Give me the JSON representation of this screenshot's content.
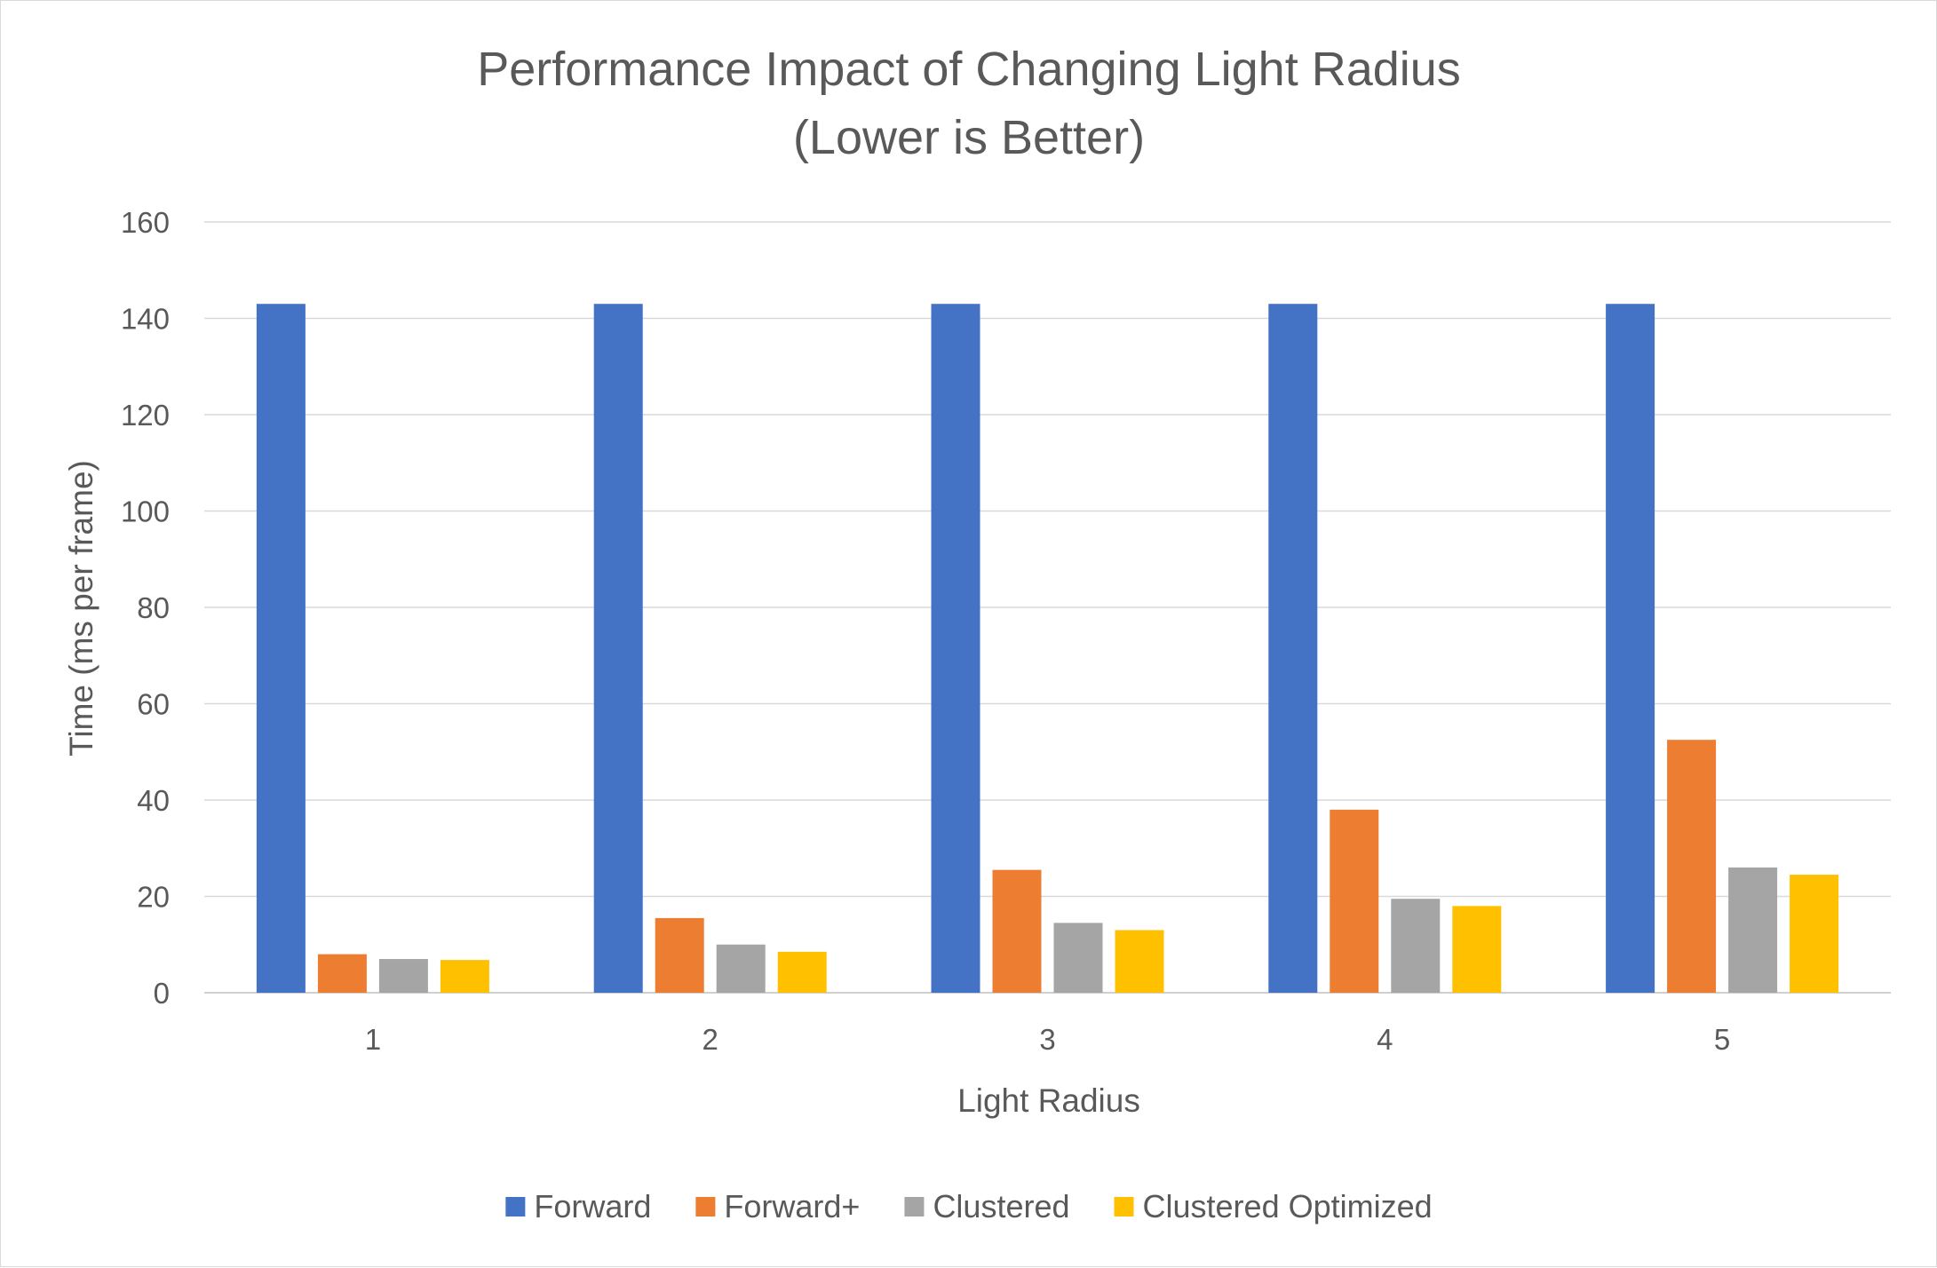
{
  "chart_data": {
    "type": "bar",
    "title_lines": [
      "Performance Impact of Changing Light Radius",
      "(Lower is Better)"
    ],
    "xlabel": "Light Radius",
    "ylabel": "Time (ms per frame)",
    "categories": [
      "1",
      "2",
      "3",
      "4",
      "5"
    ],
    "ylim": [
      0,
      160
    ],
    "yticks": [
      0,
      20,
      40,
      60,
      80,
      100,
      120,
      140,
      160
    ],
    "grid": true,
    "legend_position": "bottom",
    "series": [
      {
        "name": "Forward",
        "color": "#4472C4",
        "values": [
          143,
          143,
          143,
          143,
          143
        ]
      },
      {
        "name": "Forward+",
        "color": "#ED7D31",
        "values": [
          8,
          15.5,
          25.5,
          38,
          52.5
        ]
      },
      {
        "name": "Clustered",
        "color": "#A5A5A5",
        "values": [
          7,
          10,
          14.5,
          19.5,
          26
        ]
      },
      {
        "name": "Clustered Optimized",
        "color": "#FFC000",
        "values": [
          6.8,
          8.5,
          13,
          18,
          24.5
        ]
      }
    ]
  }
}
